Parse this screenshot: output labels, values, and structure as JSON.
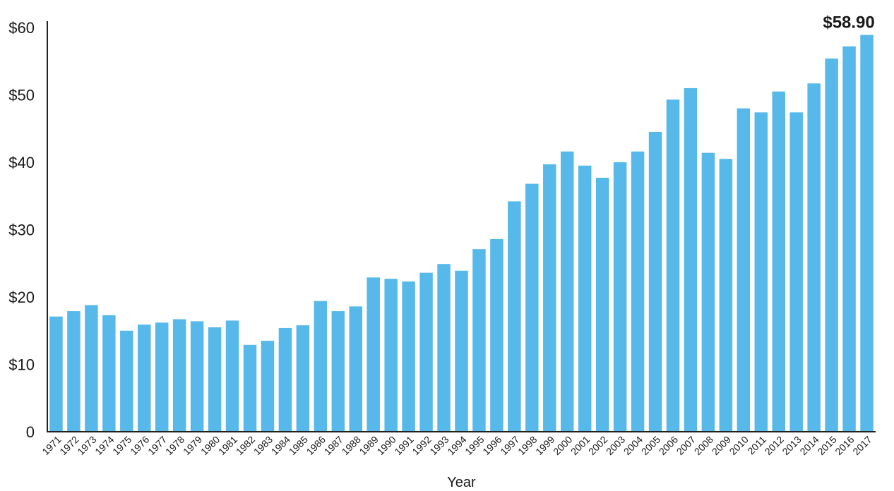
{
  "chart_data": {
    "type": "bar",
    "title": "",
    "xlabel": "Year",
    "ylabel": "",
    "ylim": [
      0,
      60
    ],
    "yticks": [
      {
        "value": 0,
        "label": "0"
      },
      {
        "value": 10,
        "label": "$10"
      },
      {
        "value": 20,
        "label": "$20"
      },
      {
        "value": 30,
        "label": "$30"
      },
      {
        "value": 40,
        "label": "$40"
      },
      {
        "value": 50,
        "label": "$50"
      },
      {
        "value": 60,
        "label": "$60"
      }
    ],
    "categories": [
      "1971",
      "1972",
      "1973",
      "1974",
      "1975",
      "1976",
      "1977",
      "1978",
      "1979",
      "1980",
      "1981",
      "1982",
      "1983",
      "1984",
      "1985",
      "1986",
      "1987",
      "1988",
      "1989",
      "1990",
      "1991",
      "1992",
      "1993",
      "1994",
      "1995",
      "1996",
      "1997",
      "1998",
      "1999",
      "2000",
      "2001",
      "2002",
      "2003",
      "2004",
      "2005",
      "2006",
      "2007",
      "2008",
      "2009",
      "2010",
      "2011",
      "2012",
      "2013",
      "2014",
      "2015",
      "2016",
      "2017"
    ],
    "values": [
      17.1,
      17.9,
      18.8,
      17.3,
      15.0,
      15.9,
      16.2,
      16.7,
      16.4,
      15.5,
      16.5,
      12.9,
      13.5,
      15.4,
      15.8,
      19.4,
      17.9,
      18.6,
      22.9,
      22.7,
      22.3,
      23.6,
      24.9,
      23.9,
      27.1,
      28.6,
      34.2,
      36.8,
      39.7,
      41.6,
      39.5,
      37.7,
      40.0,
      41.6,
      44.5,
      49.3,
      51.0,
      41.4,
      40.5,
      48.0,
      47.4,
      50.5,
      47.4,
      51.7,
      55.4,
      57.2,
      58.9
    ],
    "color": "#56b9e9",
    "grid": false,
    "legend": "none",
    "annotations": [
      {
        "category": "2017",
        "text": "$58.90"
      }
    ]
  }
}
